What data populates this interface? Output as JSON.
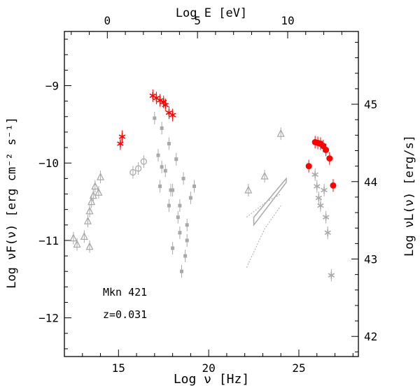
{
  "chart_data": {
    "type": "scatter",
    "title": "",
    "annotations": {
      "source": "Mkn 421",
      "redshift": "z=0.031"
    },
    "xlabel": "Log ν [Hz]",
    "ylabel": "Log νF(ν) [erg cm⁻² s⁻¹]",
    "top_xlabel": "Log E [eV]",
    "right_ylabel": "Log νL(ν)  [erg/s]",
    "xlim": [
      12,
      28.3
    ],
    "ylim": [
      -12.5,
      -8.3
    ],
    "top_xlim": [
      -2.38,
      13.92
    ],
    "right_ylim": [
      41.74,
      45.94
    ],
    "xticks": [
      15,
      20,
      25
    ],
    "xtick_labels": [
      "15",
      "20",
      "25"
    ],
    "yticks": [
      -12,
      -11,
      -10,
      -9
    ],
    "ytick_labels": [
      "−12",
      "−11",
      "−10",
      "−9"
    ],
    "top_ticks": [
      0,
      5,
      10
    ],
    "top_tick_labels": [
      "0",
      "5",
      "10"
    ],
    "right_ticks": [
      42,
      43,
      44,
      45
    ],
    "right_tick_labels": [
      "42",
      "43",
      "44",
      "45"
    ],
    "colors": {
      "archival": "#a9a9a9",
      "simultaneous": "#ff0000",
      "axes": "#000000"
    },
    "series": [
      {
        "name": "archival radio (triangles)",
        "marker": "triangle",
        "color": "#a9a9a9",
        "x": [
          12.5,
          12.7,
          13.1,
          13.4,
          13.3,
          13.4,
          13.5,
          13.6,
          13.7,
          13.9,
          14.0
        ],
        "y": [
          -10.97,
          -11.05,
          -10.95,
          -11.08,
          -10.75,
          -10.62,
          -10.5,
          -10.42,
          -10.3,
          -10.38,
          -10.18
        ]
      },
      {
        "name": "archival optical (circles)",
        "marker": "circle",
        "color": "#a9a9a9",
        "x": [
          15.8,
          16.1,
          16.4
        ],
        "y": [
          -10.12,
          -10.07,
          -9.98
        ]
      },
      {
        "name": "simultaneous optical (red stars)",
        "marker": "star",
        "color": "#ff0000",
        "x": [
          15.1,
          15.2
        ],
        "y": [
          -9.75,
          -9.66
        ]
      },
      {
        "name": "simultaneous X-ray (red)",
        "marker": "star",
        "color": "#ff0000",
        "x": [
          16.9,
          17.1,
          17.3,
          17.5,
          17.6,
          17.8,
          18.0
        ],
        "y": [
          -9.13,
          -9.16,
          -9.19,
          -9.21,
          -9.25,
          -9.35,
          -9.38
        ]
      },
      {
        "name": "archival X-ray (squares)",
        "marker": "square",
        "color": "#a9a9a9",
        "x": [
          17.0,
          17.4,
          17.8,
          18.2,
          18.6,
          19.0,
          17.2,
          17.6,
          18.0,
          18.4,
          18.8,
          17.3,
          17.8,
          18.3,
          18.8,
          17.4,
          17.9,
          18.4,
          18.7,
          19.2,
          18.0,
          18.5
        ],
        "y": [
          -9.42,
          -9.55,
          -9.75,
          -9.95,
          -10.2,
          -10.45,
          -9.9,
          -10.1,
          -10.35,
          -10.55,
          -10.8,
          -10.3,
          -10.55,
          -10.7,
          -11.0,
          -10.05,
          -10.35,
          -10.9,
          -11.2,
          -10.3,
          -11.1,
          -11.4
        ]
      },
      {
        "name": "archival gamma-ray / Fermi (triangles)",
        "marker": "triangle",
        "color": "#a9a9a9",
        "x": [
          22.2,
          23.1,
          24.0
        ],
        "y": [
          -10.35,
          -10.17,
          -9.62
        ]
      },
      {
        "name": "archival TeV (grey stars)",
        "marker": "asterisk",
        "color": "#a9a9a9",
        "x": [
          25.9,
          26.0,
          26.1,
          26.2,
          26.4,
          26.5,
          26.6,
          26.8
        ],
        "y": [
          -10.15,
          -10.3,
          -10.45,
          -10.55,
          -10.35,
          -10.7,
          -10.9,
          -11.45
        ]
      },
      {
        "name": "simultaneous TeV (red circles)",
        "marker": "filled-circle",
        "color": "#ff0000",
        "x": [
          25.55,
          25.9,
          26.05,
          26.2,
          26.35,
          26.5,
          26.7,
          26.9
        ],
        "y": [
          -10.04,
          -9.73,
          -9.74,
          -9.75,
          -9.78,
          -9.83,
          -9.94,
          -10.29
        ]
      }
    ]
  }
}
